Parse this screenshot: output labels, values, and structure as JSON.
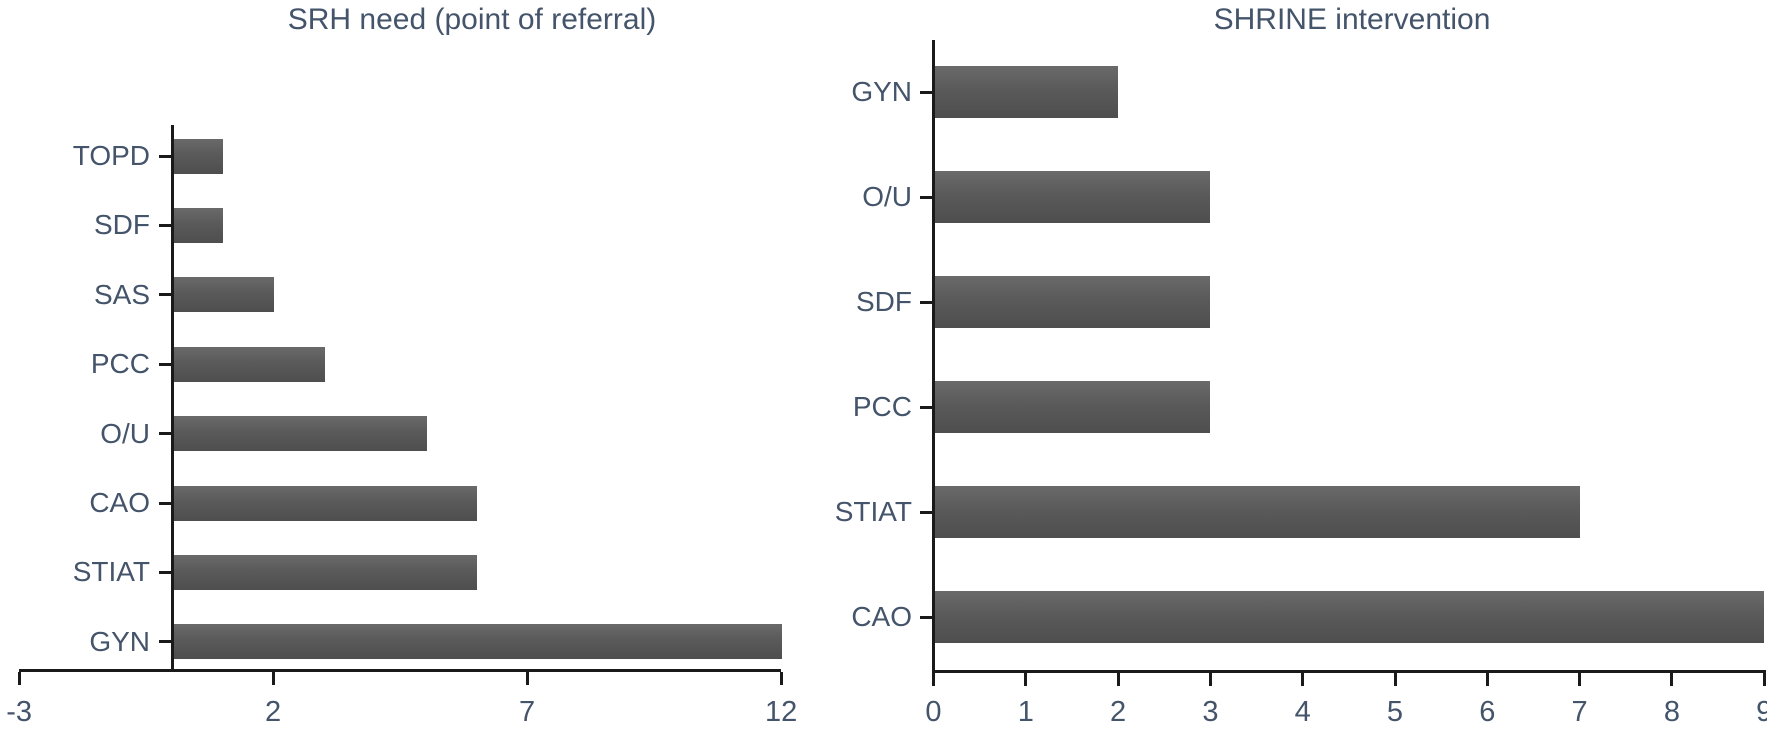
{
  "figure": {
    "background_color": "#ffffff",
    "text_color": "#44546A",
    "axis_color": "#1a1a1a",
    "bar_color": "#595959"
  },
  "chart_data": [
    {
      "type": "bar",
      "orientation": "horizontal",
      "title": "SRH need (point of referral)",
      "categories": [
        "TOPD",
        "SDF",
        "SAS",
        "PCC",
        "O/U",
        "CAO",
        "STIAT",
        "GYN"
      ],
      "values": [
        1,
        1,
        2,
        3,
        5,
        6,
        6,
        12
      ],
      "xlabel": "",
      "ylabel": "",
      "xlim": [
        -3,
        12
      ],
      "xticks": [
        -3,
        2,
        7,
        12
      ],
      "xtick_labels": [
        "-3",
        "2",
        "7",
        "12"
      ],
      "grid": false,
      "legend": false
    },
    {
      "type": "bar",
      "orientation": "horizontal",
      "title": "SHRINE intervention",
      "categories": [
        "GYN",
        "O/U",
        "SDF",
        "PCC",
        "STIAT",
        "CAO"
      ],
      "values": [
        2,
        3,
        3,
        3,
        7,
        9
      ],
      "xlabel": "",
      "ylabel": "",
      "xlim": [
        0,
        9
      ],
      "xticks": [
        0,
        1,
        2,
        3,
        4,
        5,
        6,
        7,
        8,
        9
      ],
      "xtick_labels": [
        "0",
        "1",
        "2",
        "3",
        "4",
        "5",
        "6",
        "7",
        "8",
        "9"
      ],
      "grid": false,
      "legend": false
    }
  ]
}
